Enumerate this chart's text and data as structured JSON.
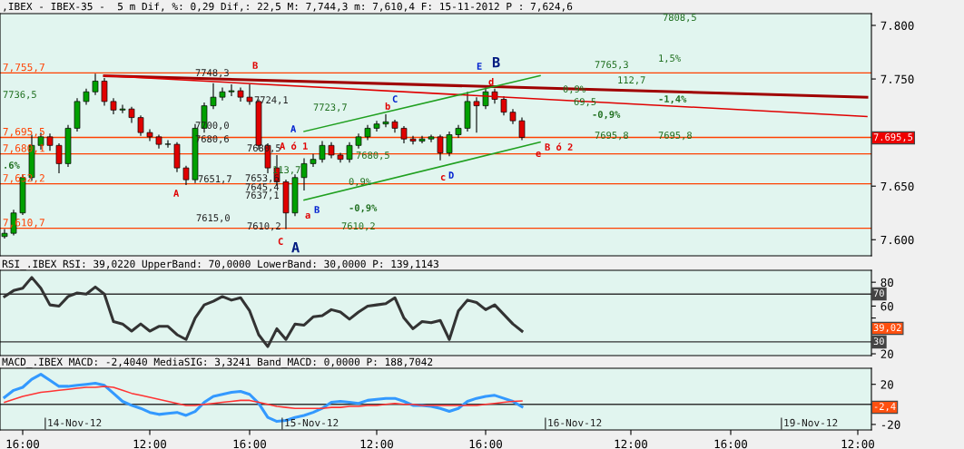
{
  "chart_data": [
    {
      "type": "candlestick",
      "title": ",IBEX - IBEX-35 -  5 m Dif, %: 0,29 Dif,: 22,5 M: 7,744,3 m: 7,610,4 F: 15-11-2012 P : 7,624,6",
      "tick_labels": "y",
      "grid": false,
      "legend": false,
      "categories": [
        null,
        null,
        null,
        null,
        null,
        null,
        null,
        null,
        null,
        null,
        null,
        null,
        null,
        null,
        null,
        null,
        null,
        null,
        null,
        null,
        null,
        null,
        null,
        null,
        null,
        null,
        null,
        null,
        null,
        null,
        null,
        null,
        null,
        null,
        null,
        null,
        null,
        null,
        null,
        null,
        null,
        null,
        null,
        null,
        null,
        null,
        null,
        null,
        null,
        null,
        null,
        null,
        null,
        null,
        null,
        null,
        null,
        null,
        null,
        null,
        null,
        null,
        null,
        null,
        null,
        null,
        null,
        null,
        null,
        null,
        null,
        null,
        null,
        null,
        null,
        null,
        null,
        null,
        null,
        null,
        null,
        null,
        null,
        null,
        null,
        null,
        null,
        null,
        null,
        null,
        null,
        null,
        null,
        null,
        null,
        null
      ],
      "ylim": [
        7585,
        7811
      ],
      "yticks": [
        {
          "value": 7600,
          "label": "7.600"
        },
        {
          "value": 7650,
          "label": "7.650"
        },
        {
          "value": 7700,
          "label": null
        },
        {
          "value": 7750,
          "label": "7.750"
        },
        {
          "value": 7800,
          "label": "7.800"
        }
      ],
      "ohlc": [
        [
          7603,
          7610,
          7601,
          7606
        ],
        [
          7606,
          7628,
          7604,
          7625
        ],
        [
          7625,
          7661,
          7623,
          7658
        ],
        [
          7658,
          7698,
          7655,
          7688
        ],
        [
          7688,
          7700,
          7684,
          7696
        ],
        [
          7696,
          7699,
          7683,
          7688
        ],
        [
          7688,
          7690,
          7662,
          7671
        ],
        [
          7671,
          7707,
          7668,
          7704
        ],
        [
          7704,
          7732,
          7701,
          7729
        ],
        [
          7729,
          7741,
          7726,
          7738
        ],
        [
          7738,
          7755,
          7735,
          7748
        ],
        [
          7748,
          7751,
          7725,
          7729
        ],
        [
          7729,
          7732,
          7717,
          7721
        ],
        [
          7721,
          7726,
          7718,
          7722
        ],
        [
          7722,
          7724,
          7709,
          7714
        ],
        [
          7714,
          7716,
          7697,
          7700
        ],
        [
          7700,
          7703,
          7692,
          7696
        ],
        [
          7696,
          7698,
          7685,
          7689
        ],
        [
          7689,
          7693,
          7686,
          7689
        ],
        [
          7689,
          7691,
          7663,
          7667
        ],
        [
          7667,
          7669,
          7651,
          7656
        ],
        [
          7656,
          7708,
          7653,
          7704
        ],
        [
          7704,
          7728,
          7700,
          7725
        ],
        [
          7725,
          7746,
          7722,
          7733
        ],
        [
          7733,
          7742,
          7730,
          7738
        ],
        [
          7738,
          7745,
          7734,
          7739
        ],
        [
          7739,
          7742,
          7729,
          7733
        ],
        [
          7733,
          7745,
          7726,
          7729
        ],
        [
          7729,
          7731,
          7684,
          7688
        ],
        [
          7688,
          7690,
          7662,
          7667
        ],
        [
          7667,
          7679,
          7650,
          7654
        ],
        [
          7654,
          7656,
          7610,
          7625
        ],
        [
          7625,
          7661,
          7622,
          7658
        ],
        [
          7658,
          7676,
          7646,
          7671
        ],
        [
          7671,
          7680,
          7668,
          7675
        ],
        [
          7675,
          7692,
          7672,
          7688
        ],
        [
          7688,
          7691,
          7676,
          7679
        ],
        [
          7679,
          7681,
          7672,
          7675
        ],
        [
          7675,
          7691,
          7672,
          7688
        ],
        [
          7688,
          7699,
          7685,
          7696
        ],
        [
          7696,
          7707,
          7693,
          7704
        ],
        [
          7704,
          7711,
          7701,
          7708
        ],
        [
          7708,
          7717,
          7705,
          7710
        ],
        [
          7710,
          7712,
          7700,
          7704
        ],
        [
          7704,
          7706,
          7690,
          7694
        ],
        [
          7694,
          7697,
          7689,
          7692
        ],
        [
          7692,
          7697,
          7690,
          7694
        ],
        [
          7694,
          7698,
          7691,
          7696
        ],
        [
          7696,
          7698,
          7674,
          7681
        ],
        [
          7681,
          7701,
          7678,
          7698
        ],
        [
          7698,
          7707,
          7695,
          7704
        ],
        [
          7704,
          7738,
          7701,
          7729
        ],
        [
          7729,
          7733,
          7700,
          7725
        ],
        [
          7725,
          7742,
          7722,
          7738
        ],
        [
          7738,
          7741,
          7727,
          7731
        ],
        [
          7731,
          7734,
          7716,
          7719
        ],
        [
          7719,
          7722,
          7708,
          7711
        ],
        [
          7711,
          7714,
          7693,
          7695.5
        ],
        null,
        null,
        null,
        null,
        null,
        null,
        null,
        null,
        null,
        null,
        null,
        null,
        null,
        null,
        null,
        null,
        null,
        null,
        null,
        null,
        null,
        null,
        null,
        null,
        null,
        null,
        null,
        null,
        null,
        null,
        null,
        null,
        null,
        null,
        null,
        null,
        null,
        null
      ],
      "series": [
        {
          "type": "line",
          "color": "#a00000",
          "values": [
            null,
            null,
            null,
            null,
            null,
            null,
            null,
            null,
            null,
            null,
            null,
            7753,
            null,
            null,
            null,
            null,
            null,
            null,
            null,
            null,
            null,
            null,
            null,
            null,
            null,
            null,
            null,
            null,
            null,
            null,
            null,
            null,
            null,
            null,
            null,
            null,
            null,
            null,
            null,
            null,
            null,
            null,
            null,
            null,
            null,
            null,
            null,
            null,
            null,
            null,
            null,
            null,
            null,
            null,
            null,
            null,
            null,
            null,
            null,
            null,
            null,
            null,
            null,
            null,
            null,
            null,
            null,
            null,
            null,
            null,
            null,
            null,
            null,
            null,
            null,
            null,
            null,
            null,
            null,
            null,
            null,
            null,
            null,
            null,
            null,
            null,
            null,
            null,
            null,
            null,
            null,
            null,
            null,
            null,
            null,
            7733
          ]
        },
        {
          "type": "line",
          "color": "#e00000",
          "values": [
            null,
            null,
            null,
            null,
            null,
            null,
            null,
            null,
            null,
            null,
            null,
            7753,
            null,
            null,
            null,
            null,
            null,
            null,
            null,
            null,
            null,
            null,
            null,
            null,
            null,
            null,
            null,
            null,
            null,
            null,
            null,
            null,
            null,
            null,
            null,
            null,
            null,
            null,
            null,
            null,
            null,
            null,
            null,
            null,
            null,
            null,
            null,
            null,
            null,
            null,
            null,
            null,
            null,
            null,
            null,
            null,
            null,
            null,
            null,
            null,
            null,
            null,
            null,
            null,
            null,
            null,
            null,
            null,
            null,
            null,
            null,
            null,
            null,
            null,
            null,
            null,
            null,
            null,
            null,
            null,
            null,
            null,
            null,
            null,
            null,
            null,
            null,
            null,
            null,
            null,
            null,
            null,
            null,
            null,
            null,
            7715
          ]
        },
        {
          "type": "line",
          "color": "#20a020",
          "values": [
            null,
            null,
            null,
            null,
            null,
            null,
            null,
            null,
            null,
            null,
            null,
            null,
            null,
            null,
            null,
            null,
            null,
            null,
            null,
            null,
            null,
            null,
            null,
            null,
            null,
            null,
            null,
            null,
            null,
            null,
            null,
            null,
            null,
            7701,
            null,
            null,
            null,
            null,
            null,
            null,
            null,
            null,
            null,
            null,
            null,
            null,
            null,
            null,
            null,
            null,
            null,
            null,
            null,
            null,
            null,
            null,
            null,
            null,
            null,
            7753,
            null,
            null,
            null,
            null,
            null,
            null,
            null,
            null,
            null,
            null,
            null,
            null,
            null,
            null,
            null,
            null,
            null,
            null,
            null,
            null,
            null,
            null,
            null,
            null,
            null,
            null,
            null,
            null,
            null,
            null,
            null,
            null,
            null,
            null,
            null,
            null
          ]
        },
        {
          "type": "line",
          "color": "#20a020",
          "values": [
            null,
            null,
            null,
            null,
            null,
            null,
            null,
            null,
            null,
            null,
            null,
            null,
            null,
            null,
            null,
            null,
            null,
            null,
            null,
            null,
            null,
            null,
            null,
            null,
            null,
            null,
            null,
            null,
            null,
            null,
            null,
            null,
            null,
            7637,
            null,
            null,
            null,
            null,
            null,
            null,
            null,
            null,
            null,
            null,
            null,
            null,
            null,
            null,
            null,
            null,
            null,
            null,
            null,
            null,
            null,
            null,
            null,
            null,
            null,
            7691,
            null,
            null,
            null,
            null,
            null,
            null,
            null,
            null,
            null,
            null,
            null,
            null,
            null,
            null,
            null,
            null,
            null,
            null,
            null,
            null,
            null,
            null,
            null,
            null,
            null,
            null,
            null,
            null,
            null,
            null,
            null,
            null,
            null,
            null,
            null,
            null
          ]
        }
      ],
      "ref_lines": [
        {
          "axis": "y",
          "value": 7755.7,
          "label": "7,755,7",
          "color": "#ff4000"
        },
        {
          "axis": "y",
          "value": 7695.5,
          "label": "7,695,5",
          "color": "#ff4000"
        },
        {
          "axis": "y",
          "value": 7680.1,
          "label": "7,680,1",
          "color": "#ff4000"
        },
        {
          "axis": "y",
          "value": 7652.2,
          "label": "7,652,2",
          "color": "#ff4000"
        },
        {
          "axis": "y",
          "value": 7610.7,
          "label": "7,610,7",
          "color": "#ff4000"
        }
      ],
      "annotations": [
        "7.695,5",
        "7736,5",
        ".6%",
        "7748,3",
        "B",
        "7724,1",
        "7723,7",
        "A",
        "7700,0",
        "7680,6",
        "7680,5",
        "A ó 1",
        "7651,7",
        "A",
        "7653,6",
        "7645,4",
        "7637,1",
        "113,7",
        "7615,0",
        "7610,2",
        "C",
        "A",
        "a",
        "B",
        "0,9%",
        "-0,9%",
        "7610,2",
        "7680,5",
        "b",
        "C",
        "c",
        "D",
        "E",
        "B",
        "d",
        "e",
        "B ó 2",
        "0,9%",
        "69,5",
        "-0,9%",
        "7765,3",
        "7695,8",
        "112,7",
        "1,5%",
        "-1,4%",
        "7695,8",
        "7808,5"
      ]
    },
    {
      "type": "line",
      "title": "RSI_.IBEX RSI: 39,0220 UpperBand: 70,0000 LowerBand: 30,0000 P: 139,1143",
      "tick_labels": "y",
      "grid": false,
      "legend": false,
      "categories": [
        null,
        null,
        null,
        null,
        null,
        null,
        null,
        null,
        null,
        null,
        null,
        null,
        null,
        null,
        null,
        null,
        null,
        null,
        null,
        null,
        null,
        null,
        null,
        null,
        null,
        null,
        null,
        null,
        null,
        null,
        null,
        null,
        null,
        null,
        null,
        null,
        null,
        null,
        null,
        null,
        null,
        null,
        null,
        null,
        null,
        null,
        null,
        null,
        null,
        null,
        null,
        null,
        null,
        null,
        null,
        null,
        null,
        null,
        null,
        null,
        null,
        null,
        null,
        null,
        null,
        null,
        null,
        null,
        null,
        null,
        null,
        null,
        null,
        null,
        null,
        null,
        null,
        null,
        null,
        null,
        null,
        null,
        null,
        null,
        null,
        null,
        null,
        null,
        null,
        null,
        null,
        null,
        null,
        null,
        null,
        null
      ],
      "ylim": [
        18.5,
        90
      ],
      "yticks": [
        20,
        {
          "value": 30,
          "label": null
        },
        {
          "value": 40,
          "label": null
        },
        {
          "value": 50,
          "label": null
        },
        60,
        {
          "value": 70,
          "label": null
        },
        80
      ],
      "series": [
        {
          "color": "#333333",
          "values": [
            68,
            73,
            75,
            84,
            75,
            61,
            60,
            68,
            71,
            70,
            76,
            70,
            47,
            45,
            39,
            45,
            39,
            43,
            43,
            36,
            32,
            50,
            61,
            64,
            68,
            65,
            67,
            56,
            36,
            26,
            41,
            32,
            45,
            44,
            51,
            52,
            57,
            55,
            49,
            55,
            60,
            61,
            62,
            67,
            50,
            41,
            47,
            46,
            48,
            32,
            56,
            65,
            63,
            57,
            61,
            53,
            45,
            39.02,
            null,
            null,
            null,
            null,
            null,
            null,
            null,
            null,
            null,
            null,
            null,
            null,
            null,
            null,
            null,
            null,
            null,
            null,
            null,
            null,
            null,
            null,
            null,
            null,
            null,
            null,
            null,
            null,
            null,
            null,
            null,
            null,
            null,
            null,
            null,
            null,
            null,
            null
          ]
        }
      ],
      "ref_lines": [
        {
          "axis": "y",
          "value": 70,
          "color": "#333333"
        },
        {
          "axis": "y",
          "value": 30,
          "color": "#333333"
        }
      ],
      "annotations": [
        "70",
        "39,02",
        "30"
      ]
    },
    {
      "type": "line",
      "title": "MACD_.IBEX MACD: -2,4040 MediaSIG: 3,3241 Band_MACD: 0,0000 P: 188,7042",
      "grid": false,
      "legend": false,
      "categories": [
        null,
        null,
        "16:00",
        null,
        null,
        null,
        null,
        null,
        null,
        null,
        null,
        null,
        null,
        null,
        null,
        null,
        "12:00",
        null,
        null,
        null,
        null,
        null,
        null,
        null,
        null,
        null,
        null,
        "16:00",
        null,
        null,
        null,
        null,
        null,
        null,
        null,
        null,
        null,
        null,
        null,
        null,
        null,
        "12:00",
        null,
        null,
        null,
        null,
        null,
        null,
        null,
        null,
        null,
        null,
        null,
        "16:00",
        null,
        null,
        null,
        null,
        null,
        null,
        null,
        null,
        null,
        null,
        null,
        null,
        null,
        null,
        null,
        "12:00",
        null,
        null,
        null,
        null,
        null,
        null,
        null,
        null,
        null,
        null,
        "16:00",
        null,
        null,
        null,
        null,
        null,
        null,
        null,
        null,
        null,
        null,
        null,
        null,
        null,
        "12:00",
        null
      ],
      "ylim": [
        -25.5,
        36
      ],
      "yticks": [
        -20,
        {
          "value": 0,
          "label": null
        },
        20
      ],
      "series": [
        {
          "color": "#3399ff",
          "values": [
            7,
            14,
            17,
            25,
            30,
            24,
            18,
            18,
            19,
            20,
            21,
            19,
            11,
            3,
            -1,
            -4,
            -8,
            -10,
            -9,
            -8,
            -11,
            -7,
            2,
            8,
            10,
            12,
            13,
            10,
            1,
            -13,
            -17,
            -16,
            -13,
            -11,
            -8,
            -4,
            2,
            3,
            2,
            1,
            4,
            5,
            6,
            6,
            3,
            -1,
            -1,
            -2,
            -4,
            -7,
            -4,
            3,
            6,
            8,
            9,
            6,
            3,
            -2.404,
            null,
            null,
            null,
            null,
            null,
            null,
            null,
            null,
            null,
            null,
            null,
            null,
            null,
            null,
            null,
            null,
            null,
            null,
            null,
            null,
            null,
            null,
            null,
            null,
            null,
            null,
            null,
            null,
            null,
            null,
            null,
            null,
            null,
            null,
            null,
            null,
            null,
            null
          ]
        },
        {
          "color": "#ff3333",
          "values": [
            2,
            5,
            8,
            10,
            12,
            13,
            14,
            15,
            16,
            17,
            17,
            18,
            17,
            14,
            11,
            9,
            7,
            5,
            3,
            1,
            -1,
            -1,
            0,
            1,
            2,
            3,
            4,
            4,
            2,
            0,
            -2,
            -3,
            -4,
            -4,
            -4,
            -4,
            -3,
            -3,
            -2,
            -2,
            -1,
            -1,
            0,
            1,
            0,
            0,
            -1,
            -1,
            -1,
            -1,
            -1,
            -1,
            -1,
            0,
            1,
            2,
            3,
            3.3241,
            null,
            null,
            null,
            null,
            null,
            null,
            null,
            null,
            null,
            null,
            null,
            null,
            null,
            null,
            null,
            null,
            null,
            null,
            null,
            null,
            null,
            null,
            null,
            null,
            null,
            null,
            null,
            null,
            null,
            null,
            null,
            null,
            null,
            null,
            null,
            null,
            null,
            null
          ]
        }
      ],
      "ref_lines": [
        {
          "axis": "y",
          "value": 0,
          "color": "#333333"
        }
      ],
      "annotations": [
        "-2,4",
        "14-Nov-12",
        "15-Nov-12",
        "16-Nov-12",
        "19-Nov-12"
      ]
    }
  ]
}
